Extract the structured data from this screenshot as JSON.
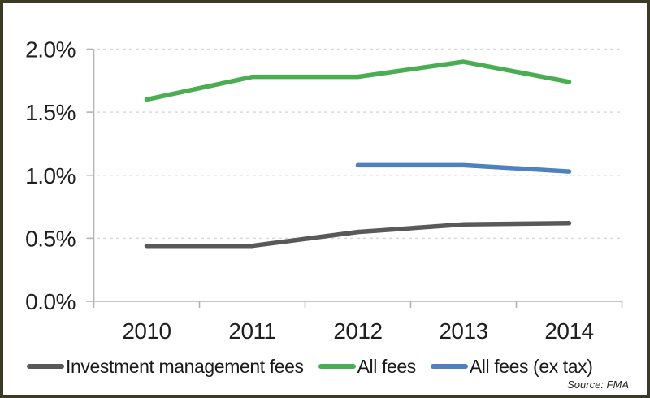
{
  "frame": {
    "border_color": "#3a3a27",
    "background_color": "#ffffff"
  },
  "chart_data": {
    "type": "line",
    "title": "",
    "xlabel": "",
    "ylabel": "",
    "categories": [
      "2010",
      "2011",
      "2012",
      "2013",
      "2014"
    ],
    "series": [
      {
        "name": "Investment management fees",
        "color": "#58595a",
        "values": [
          0.44,
          0.44,
          0.55,
          0.61,
          0.62
        ]
      },
      {
        "name": "All fees",
        "color": "#4aad52",
        "values": [
          1.6,
          1.78,
          1.78,
          1.9,
          1.74
        ]
      },
      {
        "name": "All fees (ex tax)",
        "color": "#4e81bd",
        "values": [
          null,
          null,
          1.08,
          1.08,
          1.03
        ]
      }
    ],
    "ylim": [
      0,
      2.0
    ],
    "y_tick_values": [
      0,
      0.5,
      1.0,
      1.5,
      2.0
    ],
    "y_tick_labels": [
      "0.0%",
      "0.5%",
      "1.0%",
      "1.5%",
      "2.0%"
    ],
    "grid": "horizontal-dashed",
    "gridline_color": "#d9d9d9",
    "axis_color": "#b3b3b3",
    "tick_text_color": "#1f1f1f",
    "legend_position": "bottom",
    "source_note": "Source: FMA"
  }
}
